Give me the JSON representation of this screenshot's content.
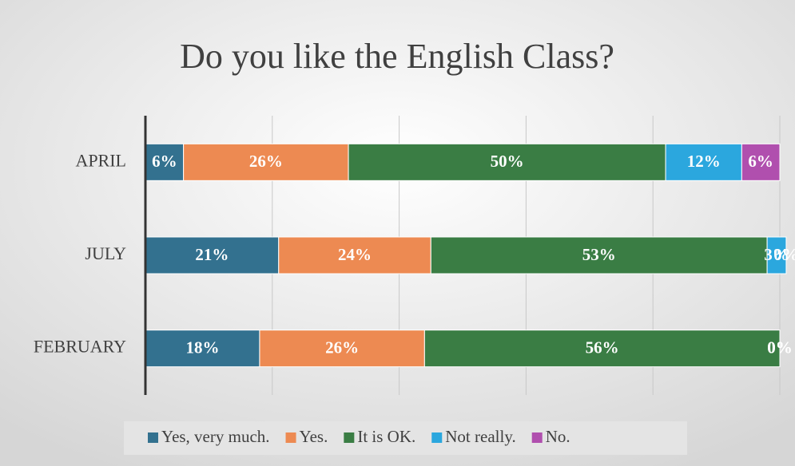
{
  "chart_data": {
    "type": "stacked_barh",
    "title": "Do you like the English Class?",
    "categories": [
      "APRIL",
      "JULY",
      "FEBRUARY"
    ],
    "series": [
      {
        "name": "Yes, very much.",
        "color": "#33718f",
        "values": [
          6,
          21,
          18
        ],
        "value_labels": [
          "6%",
          "21%",
          "18%"
        ]
      },
      {
        "name": "Yes.",
        "color": "#ed8a52",
        "values": [
          26,
          24,
          26
        ],
        "value_labels": [
          "26%",
          "24%",
          "26%"
        ]
      },
      {
        "name": "It is OK.",
        "color": "#3a7d44",
        "values": [
          50,
          53,
          56
        ],
        "value_labels": [
          "50%",
          "53%",
          "56%"
        ]
      },
      {
        "name": "Not really.",
        "color": "#2ba7de",
        "values": [
          12,
          3,
          0
        ],
        "value_labels": [
          "12%",
          "3%",
          "0%"
        ]
      },
      {
        "name": "No.",
        "color": "#b04fae",
        "values": [
          6,
          0,
          0
        ],
        "value_labels": [
          "6%",
          "0%",
          "0%"
        ]
      }
    ],
    "xlim": [
      0,
      100
    ],
    "xticks": [
      0,
      20,
      40,
      60,
      80,
      100
    ],
    "grid": true,
    "legend": "bottom"
  }
}
